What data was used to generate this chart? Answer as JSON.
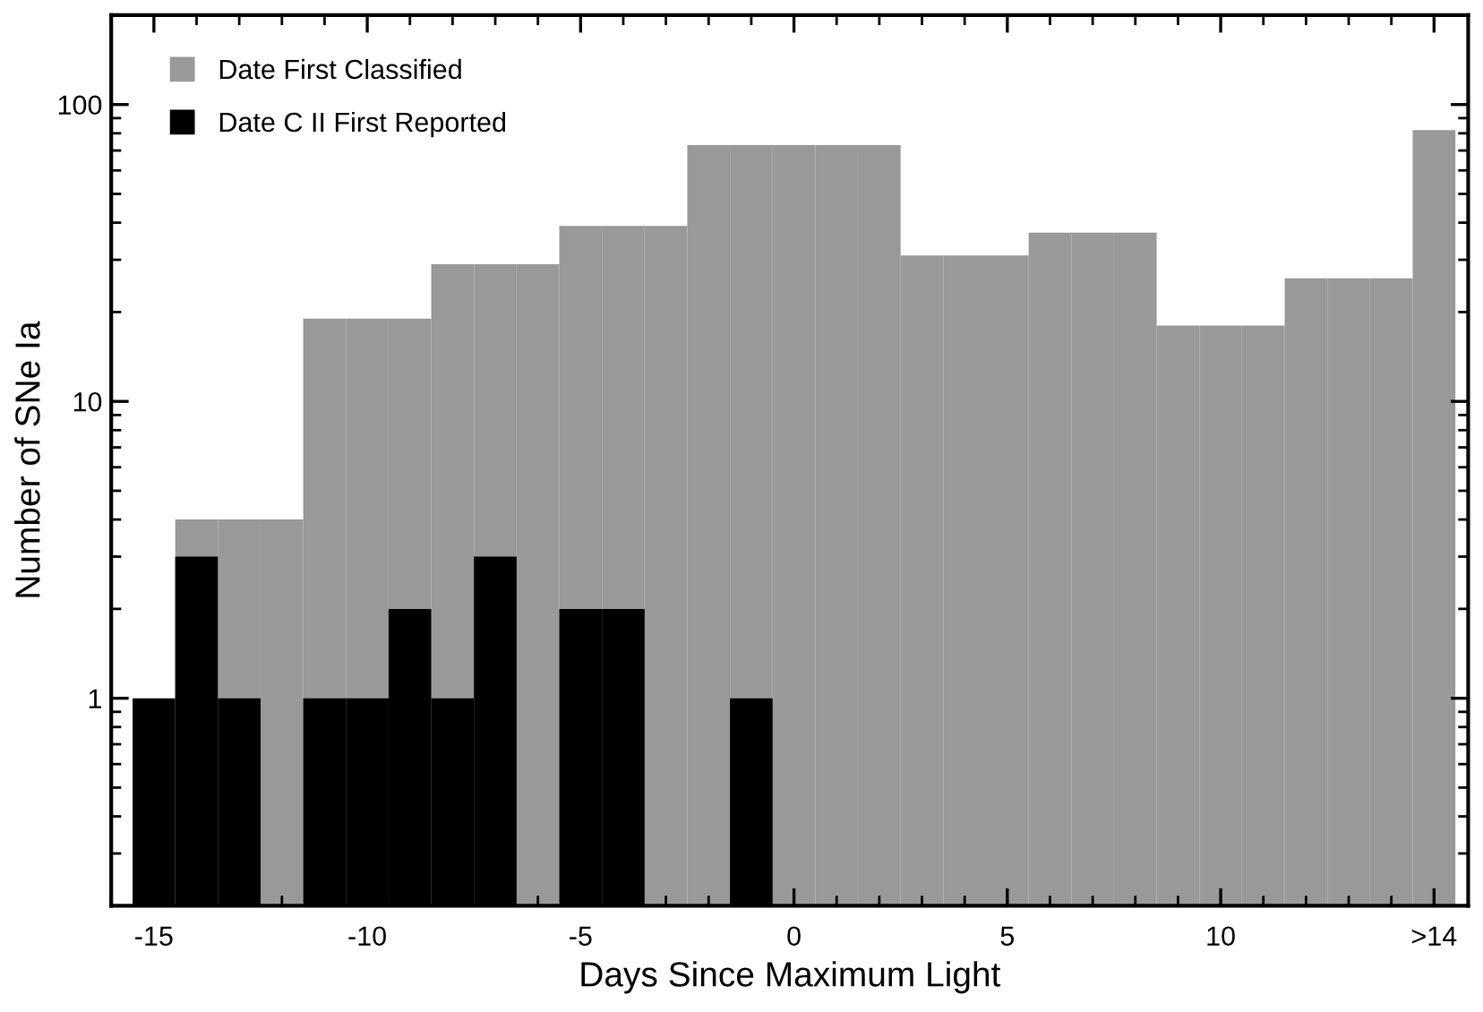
{
  "chart_data": {
    "type": "histogram",
    "xlabel": "Days Since Maximum Light",
    "ylabel": "Number of SNe Ia",
    "bins": [
      -15.5,
      -14.5,
      -13.5,
      -12.5,
      -11.5,
      -10.5,
      -9.5,
      -8.5,
      -7.5,
      -6.5,
      -5.5,
      -4.5,
      -3.5,
      -2.5,
      -1.5,
      -0.5,
      0.5,
      1.5,
      2.5,
      3.5,
      4.5,
      5.5,
      6.5,
      7.5,
      8.5,
      9.5,
      10.5,
      11.5,
      12.5,
      13.5,
      14.5,
      15.5
    ],
    "series": [
      {
        "name": "Date First Classified",
        "color": "#999999",
        "values": [
          null,
          4,
          4,
          4,
          19,
          19,
          19,
          29,
          29,
          29,
          39,
          39,
          39,
          73,
          73,
          73,
          73,
          73,
          31,
          31,
          31,
          37,
          37,
          37,
          18,
          18,
          18,
          26,
          26,
          26,
          82
        ]
      },
      {
        "name": "Date C II First Reported",
        "color": "#000000",
        "values": [
          1,
          3,
          1,
          null,
          1,
          1,
          2,
          1,
          3,
          null,
          2,
          2,
          null,
          null,
          1,
          null,
          null,
          null,
          null,
          null,
          null,
          null,
          null,
          null,
          null,
          null,
          null,
          null,
          null,
          null,
          null
        ]
      }
    ],
    "log": "y",
    "xlim": [
      -16,
      15.8
    ],
    "ylim": [
      0.2,
      200
    ],
    "xticks": [
      -15,
      -10,
      -5,
      0,
      5,
      10,
      {
        "value": 15,
        "label": ">14"
      }
    ],
    "yticks": [
      1,
      10,
      100
    ],
    "grid": false,
    "legend": "top left"
  }
}
